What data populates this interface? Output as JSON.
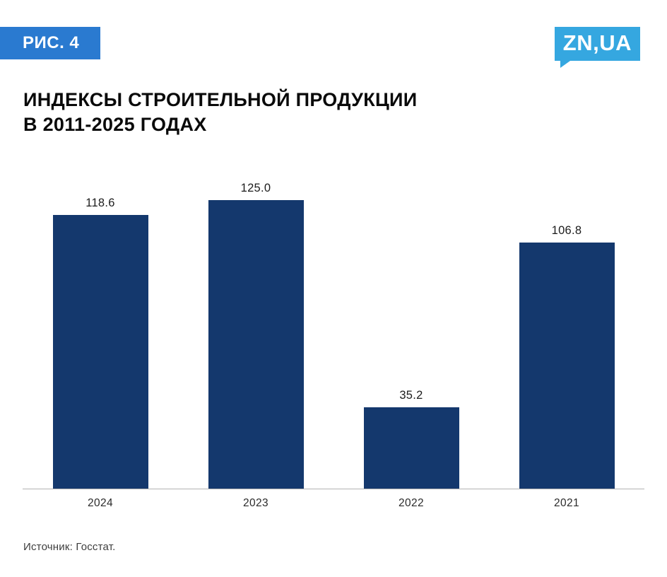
{
  "badge": {
    "label": "РИС. 4"
  },
  "logo": {
    "text": "ZN,UA"
  },
  "title": {
    "line1": "ИНДЕКСЫ СТРОИТЕЛЬНОЙ ПРОДУКЦИИ",
    "line2": "В 2011-2025 ГОДАХ"
  },
  "source": {
    "text": "Источник: Госстат."
  },
  "colors": {
    "bar": "#14386d",
    "badge_bg": "#2a7ad0",
    "logo_bg": "#35a7e0",
    "axis_line": "#b3b3b3"
  },
  "chart_data": {
    "type": "bar",
    "categories": [
      "2024",
      "2023",
      "2022",
      "2021"
    ],
    "values": [
      118.6,
      125.0,
      35.2,
      106.8
    ],
    "title": "ИНДЕКСЫ СТРОИТЕЛЬНОЙ ПРОДУКЦИИ В 2011-2025 ГОДАХ",
    "xlabel": "",
    "ylabel": "",
    "ylim": [
      0,
      130
    ],
    "grid": false,
    "legend": false,
    "bar_color": "#14386d",
    "value_label_format": "one_decimal"
  }
}
